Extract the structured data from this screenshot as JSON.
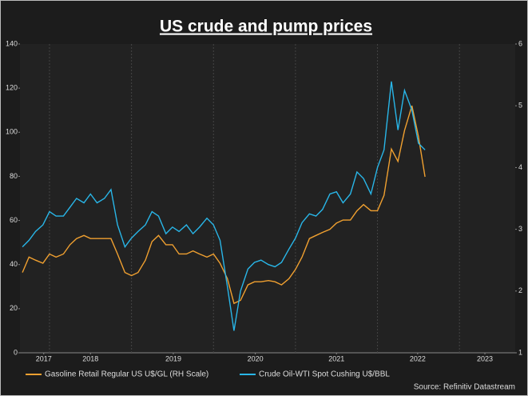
{
  "chart_data": {
    "type": "line",
    "title": "US crude and pump prices",
    "source": "Source: Refinitiv Datastream",
    "x": [
      2017.67,
      2017.75,
      2017.83,
      2017.92,
      2018.0,
      2018.08,
      2018.17,
      2018.25,
      2018.33,
      2018.42,
      2018.5,
      2018.58,
      2018.67,
      2018.75,
      2018.83,
      2018.92,
      2019.0,
      2019.08,
      2019.17,
      2019.25,
      2019.33,
      2019.42,
      2019.5,
      2019.58,
      2019.67,
      2019.75,
      2019.83,
      2019.92,
      2020.0,
      2020.08,
      2020.17,
      2020.25,
      2020.33,
      2020.42,
      2020.5,
      2020.58,
      2020.67,
      2020.75,
      2020.83,
      2020.92,
      2021.0,
      2021.08,
      2021.17,
      2021.25,
      2021.33,
      2021.42,
      2021.5,
      2021.58,
      2021.67,
      2021.75,
      2021.83,
      2021.92,
      2022.0,
      2022.08,
      2022.17,
      2022.25,
      2022.33,
      2022.42,
      2022.5,
      2022.58
    ],
    "series": [
      {
        "name": "Gasoline Retail Regular US U$/GL (RH Scale)",
        "color": "#f0a030",
        "axis": "y2",
        "values": [
          2.3,
          2.55,
          2.5,
          2.45,
          2.6,
          2.55,
          2.6,
          2.75,
          2.85,
          2.9,
          2.85,
          2.85,
          2.85,
          2.85,
          2.6,
          2.3,
          2.25,
          2.3,
          2.5,
          2.8,
          2.9,
          2.75,
          2.75,
          2.6,
          2.6,
          2.65,
          2.6,
          2.55,
          2.6,
          2.45,
          2.2,
          1.8,
          1.85,
          2.1,
          2.15,
          2.15,
          2.17,
          2.15,
          2.1,
          2.2,
          2.35,
          2.55,
          2.85,
          2.9,
          2.95,
          3.0,
          3.1,
          3.15,
          3.15,
          3.3,
          3.4,
          3.3,
          3.3,
          3.55,
          4.3,
          4.1,
          4.6,
          5.0,
          4.5,
          3.85
        ]
      },
      {
        "name": "Crude Oil-WTI Spot Cushing U$/BBL",
        "color": "#29b6e8",
        "values": [
          48,
          51,
          55,
          58,
          64,
          62,
          62,
          66,
          70,
          68,
          72,
          68,
          70,
          74,
          58,
          48,
          52,
          55,
          58,
          64,
          62,
          54,
          57,
          55,
          58,
          54,
          57,
          61,
          58,
          51,
          30,
          10,
          28,
          38,
          41,
          42,
          40,
          39,
          41,
          47,
          52,
          59,
          63,
          62,
          65,
          72,
          73,
          68,
          72,
          82,
          79,
          72,
          84,
          92,
          123,
          101,
          119,
          110,
          95,
          92
        ]
      }
    ],
    "xlim": [
      2017.64,
      2023.68
    ],
    "xticks": [
      {
        "value": 2017.93,
        "label": "2017"
      },
      {
        "value": 2018.5,
        "label": "2018"
      },
      {
        "value": 2019.51,
        "label": "2019"
      },
      {
        "value": 2020.51,
        "label": "2020"
      },
      {
        "value": 2021.5,
        "label": "2021"
      },
      {
        "value": 2022.49,
        "label": "2022"
      },
      {
        "value": 2023.31,
        "label": "2023"
      }
    ],
    "xgrid": [
      2018,
      2019,
      2020,
      2021,
      2022,
      2023
    ],
    "ylim": [
      0,
      140
    ],
    "yticks": [
      0,
      20,
      40,
      60,
      80,
      100,
      120,
      140
    ],
    "y2lim": [
      1,
      6
    ],
    "y2ticks": [
      1,
      2,
      3,
      4,
      5,
      6
    ],
    "grid": true
  }
}
